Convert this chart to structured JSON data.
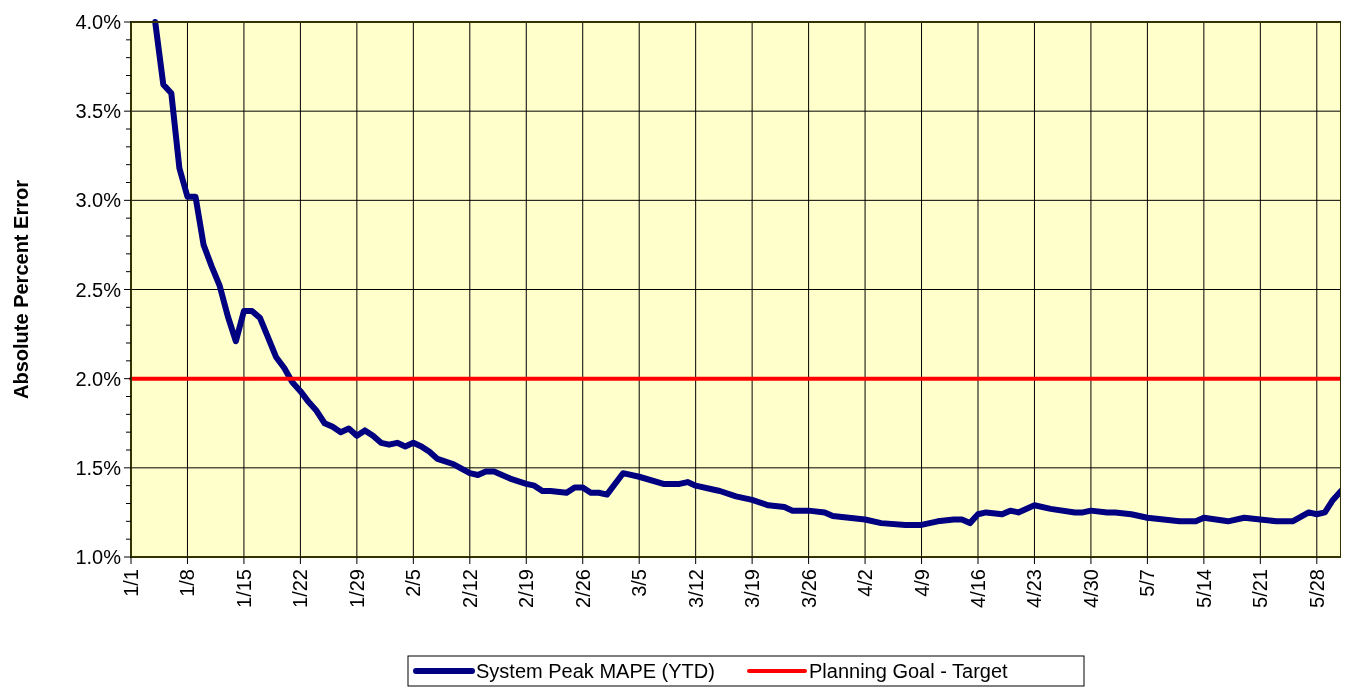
{
  "chart_data": {
    "type": "line",
    "ylabel": "Absolute Percent Error",
    "xlim": [
      "--01-01",
      "--05-31"
    ],
    "xticks": [
      {
        "value": "--01-01",
        "label": "1/1"
      },
      {
        "value": "--01-08",
        "label": "1/8"
      },
      {
        "value": "--01-15",
        "label": "1/15"
      },
      {
        "value": "--01-22",
        "label": "1/22"
      },
      {
        "value": "--01-29",
        "label": "1/29"
      },
      {
        "value": "--02-05",
        "label": "2/5"
      },
      {
        "value": "--02-12",
        "label": "2/12"
      },
      {
        "value": "--02-19",
        "label": "2/19"
      },
      {
        "value": "--02-26",
        "label": "2/26"
      },
      {
        "value": "--03-05",
        "label": "3/5"
      },
      {
        "value": "--03-12",
        "label": "3/12"
      },
      {
        "value": "--03-19",
        "label": "3/19"
      },
      {
        "value": "--03-26",
        "label": "3/26"
      },
      {
        "value": "--04-02",
        "label": "4/2"
      },
      {
        "value": "--04-09",
        "label": "4/9"
      },
      {
        "value": "--04-16",
        "label": "4/16"
      },
      {
        "value": "--04-23",
        "label": "4/23"
      },
      {
        "value": "--04-30",
        "label": "4/30"
      },
      {
        "value": "--05-07",
        "label": "5/7"
      },
      {
        "value": "--05-14",
        "label": "5/14"
      },
      {
        "value": "--05-21",
        "label": "5/21"
      },
      {
        "value": "--05-28",
        "label": "5/28"
      }
    ],
    "ylim": [
      1,
      4
    ],
    "yticks": [
      {
        "value": 1,
        "label": "1.0%"
      },
      {
        "value": 1.1,
        "label": null
      },
      {
        "value": 1.2,
        "label": null
      },
      {
        "value": 1.3,
        "label": null
      },
      {
        "value": 1.4,
        "label": null
      },
      {
        "value": 1.5,
        "label": "1.5%"
      },
      {
        "value": 1.6,
        "label": null
      },
      {
        "value": 1.7,
        "label": null
      },
      {
        "value": 1.8,
        "label": null
      },
      {
        "value": 1.9,
        "label": null
      },
      {
        "value": 2,
        "label": "2.0%"
      },
      {
        "value": 2.1,
        "label": null
      },
      {
        "value": 2.2,
        "label": null
      },
      {
        "value": 2.3,
        "label": null
      },
      {
        "value": 2.4,
        "label": null
      },
      {
        "value": 2.5,
        "label": "2.5%"
      },
      {
        "value": 2.6,
        "label": null
      },
      {
        "value": 2.7,
        "label": null
      },
      {
        "value": 2.8,
        "label": null
      },
      {
        "value": 2.9,
        "label": null
      },
      {
        "value": 3,
        "label": "3.0%"
      },
      {
        "value": 3.1,
        "label": null
      },
      {
        "value": 3.2,
        "label": null
      },
      {
        "value": 3.3,
        "label": null
      },
      {
        "value": 3.4,
        "label": null
      },
      {
        "value": 3.5,
        "label": "3.5%"
      },
      {
        "value": 3.6,
        "label": null
      },
      {
        "value": 3.7,
        "label": null
      },
      {
        "value": 3.8,
        "label": null
      },
      {
        "value": 3.9,
        "label": null
      },
      {
        "value": 4,
        "label": "4.0%"
      }
    ],
    "grid": true,
    "legend": "bottom",
    "marker": "none",
    "line_style": "solid",
    "series": [
      {
        "name": "System Peak MAPE (YTD)",
        "color": "#000080",
        "x": [
          "--01-04",
          "--01-05",
          "--01-06",
          "--01-07",
          "--01-08",
          "--01-09",
          "--01-10",
          "--01-11",
          "--01-12",
          "--01-13",
          "--01-14",
          "--01-15",
          "--01-16",
          "--01-17",
          "--01-18",
          "--01-19",
          "--01-20",
          "--01-21",
          "--01-22",
          "--01-23",
          "--01-24",
          "--01-25",
          "--01-26",
          "--01-27",
          "--01-28",
          "--01-29",
          "--01-30",
          "--01-31",
          "--02-01",
          "--02-02",
          "--02-03",
          "--02-04",
          "--02-05",
          "--02-06",
          "--02-07",
          "--02-08",
          "--02-10",
          "--02-12",
          "--02-13",
          "--02-14",
          "--02-15",
          "--02-17",
          "--02-19",
          "--02-20",
          "--02-21",
          "--02-22",
          "--02-24",
          "--02-25",
          "--02-26",
          "--02-27",
          "--02-28",
          "--03-01",
          "--03-03",
          "--03-05",
          "--03-08",
          "--03-10",
          "--03-11",
          "--03-12",
          "--03-14",
          "--03-15",
          "--03-17",
          "--03-19",
          "--03-21",
          "--03-23",
          "--03-24",
          "--03-26",
          "--03-28",
          "--03-29",
          "--03-31",
          "--04-02",
          "--04-04",
          "--04-07",
          "--04-09",
          "--04-11",
          "--04-13",
          "--04-14",
          "--04-15",
          "--04-16",
          "--04-17",
          "--04-19",
          "--04-20",
          "--04-21",
          "--04-23",
          "--04-25",
          "--04-28",
          "--04-29",
          "--04-30",
          "--05-02",
          "--05-03",
          "--05-05",
          "--05-07",
          "--05-09",
          "--05-11",
          "--05-13",
          "--05-14",
          "--05-17",
          "--05-19",
          "--05-21",
          "--05-23",
          "--05-25",
          "--05-27",
          "--05-28",
          "--05-29",
          "--05-30",
          "--05-31"
        ],
        "values": [
          4.0,
          3.65,
          3.6,
          3.18,
          3.02,
          3.02,
          2.75,
          2.63,
          2.52,
          2.35,
          2.21,
          2.38,
          2.38,
          2.34,
          2.23,
          2.12,
          2.06,
          1.98,
          1.93,
          1.87,
          1.82,
          1.75,
          1.73,
          1.7,
          1.72,
          1.68,
          1.71,
          1.68,
          1.64,
          1.63,
          1.64,
          1.62,
          1.64,
          1.62,
          1.59,
          1.55,
          1.52,
          1.47,
          1.46,
          1.48,
          1.48,
          1.44,
          1.41,
          1.4,
          1.37,
          1.37,
          1.36,
          1.39,
          1.39,
          1.36,
          1.36,
          1.35,
          1.47,
          1.45,
          1.41,
          1.41,
          1.42,
          1.4,
          1.38,
          1.37,
          1.34,
          1.32,
          1.29,
          1.28,
          1.26,
          1.26,
          1.25,
          1.23,
          1.22,
          1.21,
          1.19,
          1.18,
          1.18,
          1.2,
          1.21,
          1.21,
          1.19,
          1.24,
          1.25,
          1.24,
          1.26,
          1.25,
          1.29,
          1.27,
          1.25,
          1.25,
          1.26,
          1.25,
          1.25,
          1.24,
          1.22,
          1.21,
          1.2,
          1.2,
          1.22,
          1.2,
          1.22,
          1.21,
          1.2,
          1.2,
          1.25,
          1.24,
          1.25,
          1.32,
          1.37
        ]
      },
      {
        "name": "Planning Goal - Target",
        "color": "#ff0000",
        "x": [
          "--01-01",
          "--05-31"
        ],
        "values": [
          2,
          2
        ]
      }
    ]
  }
}
